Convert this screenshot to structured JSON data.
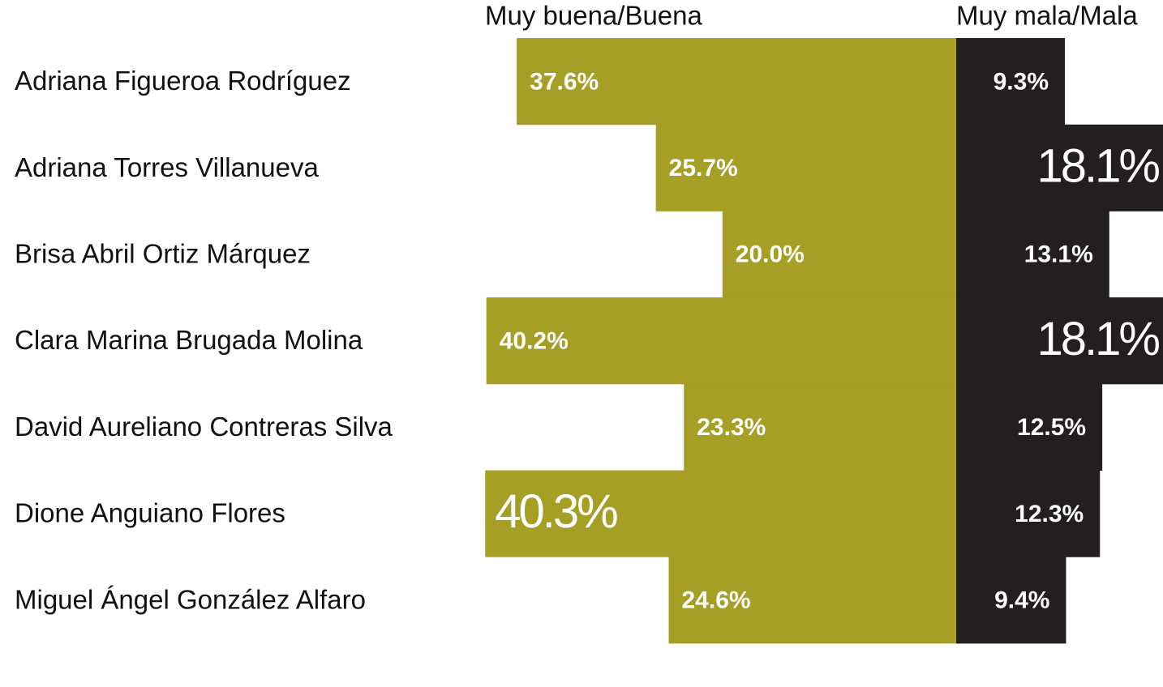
{
  "chart_data": {
    "type": "diverging-bar",
    "categories": [
      "Adriana Figueroa Rodríguez",
      "Adriana Torres Villanueva",
      "Brisa Abril Ortiz Márquez",
      "Clara Marina Brugada Molina",
      "David Aureliano Contreras Silva",
      "Dione Anguiano Flores",
      "Miguel Ángel González Alfaro"
    ],
    "series": [
      {
        "name": "Muy buena/Buena",
        "color": "#a69f25",
        "values": [
          37.6,
          25.7,
          20.0,
          40.2,
          23.3,
          40.3,
          24.6
        ],
        "value_labels": [
          "37.6%",
          "25.7%",
          "20.0%",
          "40.2%",
          "23.3%",
          "40.3%",
          "24.6%"
        ]
      },
      {
        "name": "Muy mala/Mala",
        "color": "#231f20",
        "values": [
          9.3,
          18.1,
          13.1,
          18.1,
          12.5,
          12.3,
          9.4
        ],
        "value_labels": [
          "9.3%",
          "18.1%",
          "13.1%",
          "18.1%",
          "12.5%",
          "12.3%",
          "9.4%"
        ]
      }
    ]
  }
}
